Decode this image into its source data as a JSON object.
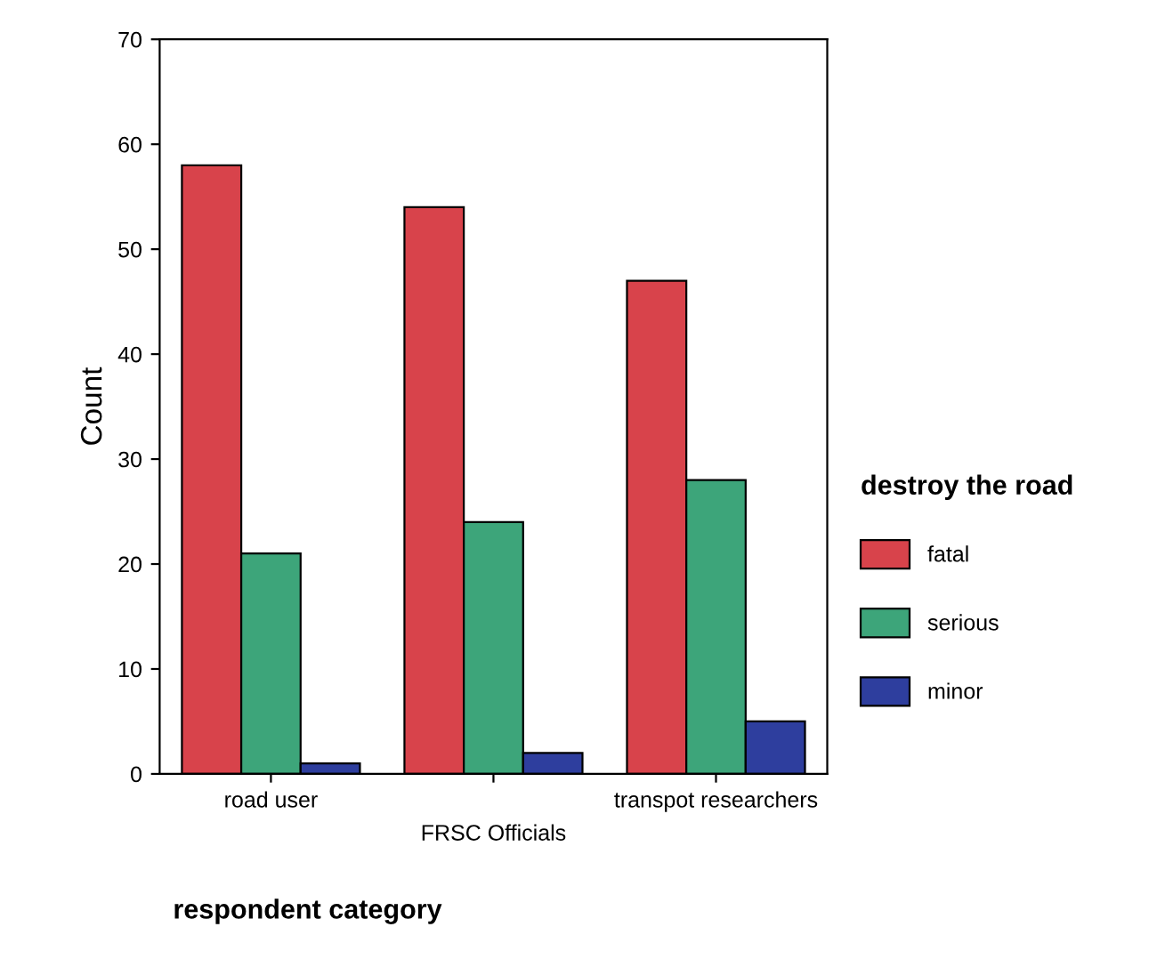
{
  "chart_data": {
    "type": "bar",
    "xlabel": "respondent category",
    "ylabel": "Count",
    "legend_title": "destroy the road",
    "categories": [
      "road user",
      "FRSC Officials",
      "transpot researchers"
    ],
    "series": [
      {
        "name": "fatal",
        "color": "#d8434b",
        "values": [
          58,
          54,
          47
        ]
      },
      {
        "name": "serious",
        "color": "#3da57a",
        "values": [
          21,
          24,
          28
        ]
      },
      {
        "name": "minor",
        "color": "#2e3e9e",
        "values": [
          1,
          2,
          5
        ]
      }
    ],
    "ylim": [
      0,
      70
    ],
    "yticks": [
      0,
      10,
      20,
      30,
      40,
      50,
      60,
      70
    ],
    "grid": false,
    "legend": "right"
  }
}
